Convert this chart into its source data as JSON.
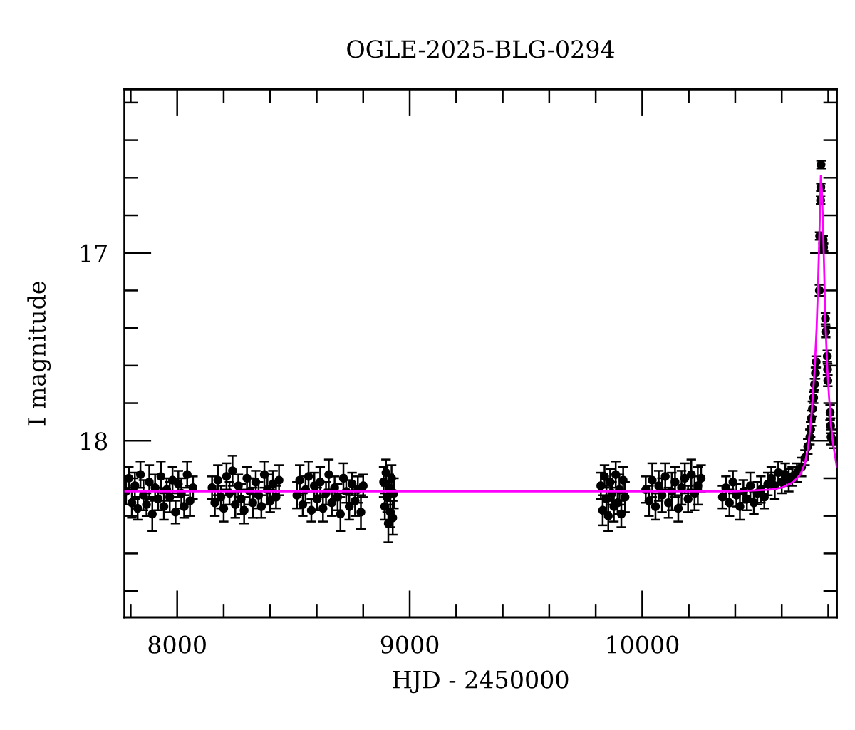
{
  "chart_data": {
    "type": "scatter",
    "title": "OGLE-2025-BLG-0294",
    "xlabel": "HJD - 2450000",
    "ylabel": "I magnitude",
    "xlim": [
      7773,
      10837
    ],
    "ylim": [
      18.94,
      16.13
    ],
    "xticks": [
      {
        "value": 7800,
        "label": null
      },
      8000,
      {
        "value": 8200,
        "label": null
      },
      {
        "value": 8400,
        "label": null
      },
      {
        "value": 8600,
        "label": null
      },
      {
        "value": 8800,
        "label": null
      },
      9000,
      {
        "value": 9200,
        "label": null
      },
      {
        "value": 9400,
        "label": null
      },
      {
        "value": 9600,
        "label": null
      },
      {
        "value": 9800,
        "label": null
      },
      10000,
      {
        "value": 10200,
        "label": null
      },
      {
        "value": 10400,
        "label": null
      },
      {
        "value": 10600,
        "label": null
      },
      {
        "value": 10800,
        "label": null
      }
    ],
    "yticks": [
      {
        "value": 16.2,
        "label": null
      },
      {
        "value": 16.4,
        "label": null
      },
      {
        "value": 16.6,
        "label": null
      },
      {
        "value": 16.8,
        "label": null
      },
      17,
      {
        "value": 17.2,
        "label": null
      },
      {
        "value": 17.4,
        "label": null
      },
      {
        "value": 17.6,
        "label": null
      },
      {
        "value": 17.8,
        "label": null
      },
      18,
      {
        "value": 18.2,
        "label": null
      },
      {
        "value": 18.4,
        "label": null
      },
      {
        "value": 18.6,
        "label": null
      },
      {
        "value": 18.8,
        "label": null
      }
    ],
    "grid": false,
    "marker": "circle",
    "series": [
      {
        "color": "#000000",
        "x": [
          7780,
          7792,
          7805,
          7818,
          7830,
          7842,
          7855,
          7868,
          7880,
          7893,
          7905,
          7918,
          7930,
          7943,
          7955,
          7968,
          7980,
          7993,
          8005,
          8018,
          8030,
          8043,
          8055,
          8068,
          8150,
          8162,
          8175,
          8188,
          8200,
          8212,
          8225,
          8238,
          8250,
          8263,
          8275,
          8288,
          8300,
          8312,
          8325,
          8338,
          8350,
          8362,
          8375,
          8388,
          8400,
          8412,
          8425,
          8438,
          8515,
          8527,
          8540,
          8552,
          8565,
          8577,
          8590,
          8602,
          8615,
          8627,
          8640,
          8652,
          8665,
          8677,
          8690,
          8702,
          8715,
          8727,
          8740,
          8752,
          8765,
          8777,
          8790,
          8800,
          8888,
          8893,
          8898,
          8903,
          8908,
          8912,
          8917,
          8922,
          8927,
          8932,
          9822,
          9830,
          9838,
          9846,
          9854,
          9862,
          9870,
          9878,
          9886,
          9894,
          9902,
          9910,
          9918,
          9926,
          10015,
          10029,
          10043,
          10057,
          10071,
          10085,
          10099,
          10113,
          10127,
          10141,
          10155,
          10169,
          10183,
          10197,
          10211,
          10225,
          10239,
          10253,
          10345,
          10360,
          10375,
          10390,
          10405,
          10420,
          10435,
          10450,
          10465,
          10480,
          10495,
          10510,
          10525,
          10540,
          10555,
          10570,
          10585,
          10600,
          10615,
          10630,
          10645,
          10665,
          10685,
          10700,
          10712,
          10721,
          10724,
          10728,
          10732,
          10737,
          10741,
          10745,
          10748,
          10762,
          10763,
          10767,
          10768,
          10769,
          10778,
          10780,
          10788,
          10789,
          10796,
          10797,
          10798,
          10808,
          10810,
          10812,
          10822
        ],
        "values": [
          18.27,
          18.2,
          18.33,
          18.24,
          18.36,
          18.18,
          18.29,
          18.34,
          18.22,
          18.39,
          18.25,
          18.31,
          18.19,
          18.35,
          18.26,
          18.3,
          18.21,
          18.38,
          18.23,
          18.28,
          18.35,
          18.18,
          18.32,
          18.25,
          18.25,
          18.33,
          18.21,
          18.3,
          18.36,
          18.19,
          18.28,
          18.16,
          18.34,
          18.24,
          18.31,
          18.37,
          18.2,
          18.27,
          18.33,
          18.22,
          18.29,
          18.35,
          18.18,
          18.26,
          18.32,
          18.23,
          18.3,
          18.21,
          18.29,
          18.21,
          18.34,
          18.26,
          18.19,
          18.37,
          18.24,
          18.31,
          18.22,
          18.36,
          18.28,
          18.18,
          18.33,
          18.25,
          18.3,
          18.39,
          18.2,
          18.27,
          18.35,
          18.23,
          18.32,
          18.26,
          18.38,
          18.24,
          18.22,
          18.35,
          18.17,
          18.3,
          18.44,
          18.25,
          18.38,
          18.2,
          18.41,
          18.28,
          18.24,
          18.37,
          18.19,
          18.31,
          18.4,
          18.22,
          18.28,
          18.35,
          18.18,
          18.33,
          18.26,
          18.39,
          18.21,
          18.3,
          18.26,
          18.32,
          18.21,
          18.35,
          18.24,
          18.29,
          18.19,
          18.33,
          18.27,
          18.22,
          18.36,
          18.25,
          18.2,
          18.31,
          18.18,
          18.28,
          18.24,
          18.2,
          18.3,
          18.25,
          18.33,
          18.22,
          18.29,
          18.35,
          18.27,
          18.31,
          18.24,
          18.33,
          18.28,
          18.26,
          18.3,
          18.23,
          18.2,
          18.24,
          18.17,
          18.22,
          18.18,
          18.21,
          18.19,
          18.17,
          18.14,
          18.09,
          18.03,
          17.98,
          17.94,
          17.88,
          17.83,
          17.77,
          17.7,
          17.64,
          17.58,
          17.2,
          16.91,
          16.72,
          16.65,
          16.53,
          16.93,
          16.97,
          17.35,
          17.42,
          17.55,
          17.62,
          17.68,
          17.85,
          17.92,
          17.98,
          18.0
        ],
        "errors": [
          0.07,
          0.06,
          0.08,
          0.07,
          0.06,
          0.07,
          0.08,
          0.06,
          0.09,
          0.09,
          0.07,
          0.06,
          0.08,
          0.07,
          0.06,
          0.08,
          0.07,
          0.06,
          0.07,
          0.08,
          0.06,
          0.07,
          0.08,
          0.06,
          0.06,
          0.07,
          0.08,
          0.06,
          0.07,
          0.07,
          0.06,
          0.08,
          0.07,
          0.06,
          0.08,
          0.07,
          0.06,
          0.07,
          0.08,
          0.06,
          0.07,
          0.06,
          0.07,
          0.08,
          0.06,
          0.07,
          0.06,
          0.08,
          0.07,
          0.08,
          0.06,
          0.07,
          0.08,
          0.06,
          0.07,
          0.06,
          0.08,
          0.07,
          0.06,
          0.08,
          0.07,
          0.06,
          0.07,
          0.09,
          0.08,
          0.06,
          0.07,
          0.06,
          0.08,
          0.07,
          0.09,
          0.06,
          0.08,
          0.07,
          0.07,
          0.08,
          0.1,
          0.07,
          0.08,
          0.07,
          0.09,
          0.08,
          0.07,
          0.08,
          0.06,
          0.07,
          0.08,
          0.07,
          0.06,
          0.08,
          0.07,
          0.06,
          0.08,
          0.07,
          0.07,
          0.08,
          0.07,
          0.08,
          0.09,
          0.07,
          0.08,
          0.09,
          0.07,
          0.08,
          0.1,
          0.08,
          0.07,
          0.09,
          0.08,
          0.07,
          0.08,
          0.09,
          0.1,
          0.07,
          0.06,
          0.06,
          0.07,
          0.06,
          0.06,
          0.07,
          0.06,
          0.06,
          0.07,
          0.06,
          0.06,
          0.07,
          0.06,
          0.06,
          0.06,
          0.07,
          0.06,
          0.06,
          0.06,
          0.06,
          0.05,
          0.05,
          0.05,
          0.04,
          0.04,
          0.04,
          0.04,
          0.04,
          0.04,
          0.03,
          0.03,
          0.03,
          0.03,
          0.03,
          0.02,
          0.02,
          0.02,
          0.02,
          0.02,
          0.02,
          0.03,
          0.03,
          0.03,
          0.03,
          0.03,
          0.04,
          0.04,
          0.04,
          0.04
        ]
      },
      {
        "type": "line",
        "color": "#ff00ff",
        "marker": "none",
        "x": [
          7773,
          10400,
          10550,
          10600,
          10650,
          10680,
          10700,
          10715,
          10728,
          10741,
          10750,
          10757,
          10763,
          10768,
          10773,
          10778,
          10788,
          10796,
          10803,
          10812,
          10820,
          10837
        ],
        "values": [
          18.27,
          18.27,
          18.26,
          18.25,
          18.22,
          18.18,
          18.12,
          18.02,
          17.86,
          17.63,
          17.4,
          17.13,
          16.85,
          16.59,
          16.68,
          16.87,
          17.38,
          17.62,
          17.76,
          17.92,
          18.01,
          18.14
        ]
      }
    ]
  }
}
